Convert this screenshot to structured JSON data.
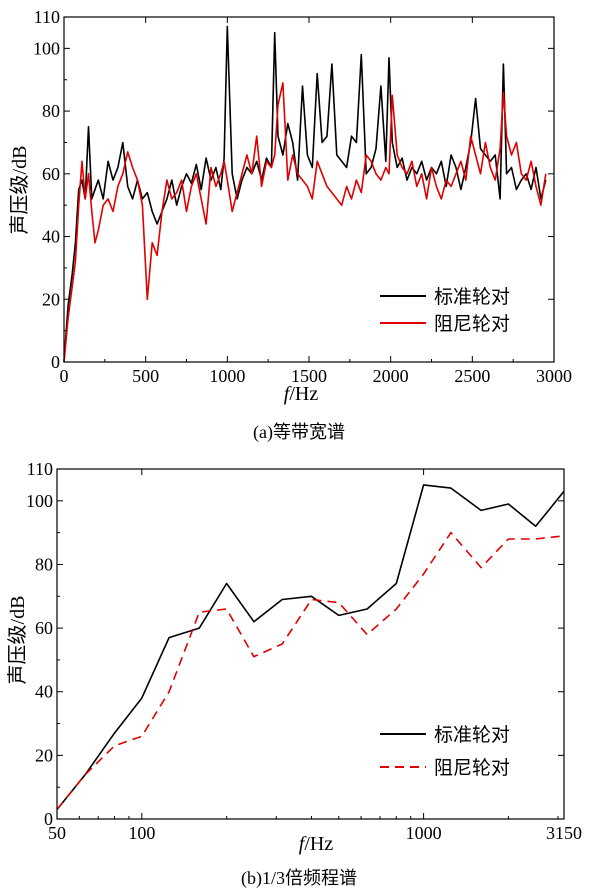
{
  "chart_data": [
    {
      "type": "line",
      "caption": "(a)等带宽谱",
      "xlabel_italic": "f",
      "xlabel_unit": "/Hz",
      "ylabel": "声压级/dB",
      "xlim": [
        0,
        3000
      ],
      "ylim": [
        0,
        110
      ],
      "xticks": [
        "0",
        "500",
        "1000",
        "1500",
        "2000",
        "2500",
        "3000"
      ],
      "yticks": [
        "0",
        "20",
        "40",
        "60",
        "80",
        "100",
        "110"
      ],
      "legend_position": "bottom-right",
      "series": [
        {
          "name": "标准轮对",
          "color": "#000000",
          "x": [
            0,
            25,
            50,
            70,
            90,
            110,
            130,
            150,
            170,
            190,
            210,
            240,
            270,
            300,
            330,
            360,
            390,
            420,
            450,
            480,
            510,
            540,
            570,
            600,
            630,
            660,
            690,
            720,
            750,
            780,
            810,
            840,
            870,
            900,
            930,
            960,
            980,
            1000,
            1030,
            1060,
            1090,
            1120,
            1150,
            1180,
            1210,
            1240,
            1270,
            1290,
            1310,
            1340,
            1370,
            1400,
            1430,
            1460,
            1490,
            1520,
            1550,
            1580,
            1610,
            1640,
            1670,
            1700,
            1730,
            1760,
            1790,
            1820,
            1850,
            1880,
            1910,
            1940,
            1970,
            1990,
            2010,
            2040,
            2070,
            2100,
            2130,
            2160,
            2190,
            2220,
            2250,
            2280,
            2310,
            2340,
            2370,
            2400,
            2430,
            2460,
            2490,
            2520,
            2550,
            2580,
            2610,
            2640,
            2670,
            2690,
            2710,
            2740,
            2770,
            2800,
            2830,
            2860,
            2890,
            2920,
            2950
          ],
          "y": [
            0,
            18,
            28,
            38,
            55,
            58,
            52,
            75,
            52,
            55,
            58,
            52,
            64,
            58,
            62,
            70,
            56,
            52,
            58,
            52,
            54,
            48,
            44,
            48,
            52,
            58,
            50,
            56,
            60,
            57,
            63,
            55,
            65,
            58,
            62,
            55,
            65,
            107,
            60,
            52,
            58,
            62,
            60,
            64,
            58,
            65,
            62,
            105,
            72,
            66,
            76,
            70,
            58,
            88,
            66,
            62,
            92,
            70,
            72,
            95,
            66,
            64,
            62,
            72,
            70,
            98,
            60,
            62,
            68,
            88,
            64,
            97,
            70,
            62,
            65,
            58,
            62,
            60,
            64,
            58,
            62,
            60,
            64,
            56,
            66,
            62,
            55,
            62,
            70,
            84,
            68,
            66,
            64,
            66,
            52,
            95,
            60,
            62,
            55,
            58,
            60,
            55,
            62,
            52,
            58
          ]
        },
        {
          "name": "阻尼轮对",
          "color": "#e00000",
          "x": [
            0,
            25,
            50,
            70,
            90,
            110,
            130,
            150,
            170,
            190,
            210,
            240,
            270,
            300,
            330,
            360,
            390,
            420,
            450,
            480,
            510,
            540,
            570,
            600,
            630,
            660,
            690,
            720,
            750,
            780,
            810,
            840,
            870,
            900,
            930,
            960,
            980,
            1000,
            1030,
            1060,
            1090,
            1120,
            1150,
            1180,
            1210,
            1240,
            1270,
            1290,
            1310,
            1340,
            1370,
            1400,
            1430,
            1460,
            1490,
            1520,
            1550,
            1580,
            1610,
            1640,
            1670,
            1700,
            1730,
            1760,
            1790,
            1820,
            1850,
            1880,
            1910,
            1940,
            1970,
            1990,
            2010,
            2040,
            2070,
            2100,
            2130,
            2160,
            2190,
            2220,
            2250,
            2280,
            2310,
            2340,
            2370,
            2400,
            2430,
            2460,
            2490,
            2520,
            2550,
            2580,
            2610,
            2640,
            2670,
            2690,
            2710,
            2740,
            2770,
            2800,
            2830,
            2860,
            2890,
            2920,
            2950
          ],
          "y": [
            0,
            14,
            24,
            32,
            50,
            64,
            52,
            60,
            48,
            38,
            42,
            50,
            52,
            48,
            56,
            60,
            67,
            62,
            58,
            50,
            20,
            38,
            34,
            48,
            58,
            52,
            54,
            58,
            48,
            56,
            60,
            52,
            44,
            62,
            56,
            60,
            64,
            58,
            48,
            54,
            60,
            66,
            60,
            72,
            56,
            64,
            62,
            66,
            82,
            89,
            58,
            66,
            60,
            58,
            56,
            52,
            64,
            60,
            56,
            54,
            52,
            50,
            56,
            52,
            58,
            54,
            66,
            64,
            60,
            58,
            62,
            60,
            85,
            66,
            62,
            60,
            64,
            56,
            60,
            52,
            62,
            56,
            52,
            58,
            56,
            60,
            64,
            58,
            72,
            66,
            60,
            70,
            62,
            58,
            68,
            86,
            72,
            66,
            70,
            60,
            58,
            64,
            56,
            50,
            60
          ]
        }
      ]
    },
    {
      "type": "line",
      "caption": "(b)1/3倍频程谱",
      "xlabel_italic": "f",
      "xlabel_unit": "/Hz",
      "ylabel": "声压级/dB",
      "xscale": "log",
      "xlim": [
        50,
        3150
      ],
      "ylim": [
        0,
        110
      ],
      "xticks": [
        "50",
        "100",
        "1000",
        "3150"
      ],
      "yticks": [
        "0",
        "20",
        "40",
        "60",
        "80",
        "100",
        "110"
      ],
      "legend_position": "bottom-right",
      "series": [
        {
          "name": "标准轮对",
          "color": "#000000",
          "dash": "solid",
          "x": [
            50,
            63,
            80,
            100,
            125,
            160,
            200,
            250,
            315,
            400,
            500,
            630,
            800,
            1000,
            1250,
            1600,
            2000,
            2500,
            3150
          ],
          "y": [
            3,
            14,
            27,
            38,
            57,
            60,
            74,
            62,
            69,
            70,
            64,
            66,
            74,
            105,
            104,
            97,
            99,
            92,
            103
          ]
        },
        {
          "name": "阻尼轮对",
          "color": "#e00000",
          "dash": "dashed",
          "x": [
            50,
            63,
            80,
            100,
            125,
            160,
            200,
            250,
            315,
            400,
            500,
            630,
            800,
            1000,
            1250,
            1600,
            2000,
            2500,
            3150
          ],
          "y": [
            3,
            14,
            23,
            26,
            40,
            65,
            66,
            51,
            55,
            69,
            68,
            58,
            66,
            77,
            90,
            79,
            88,
            88,
            89
          ]
        }
      ]
    }
  ]
}
